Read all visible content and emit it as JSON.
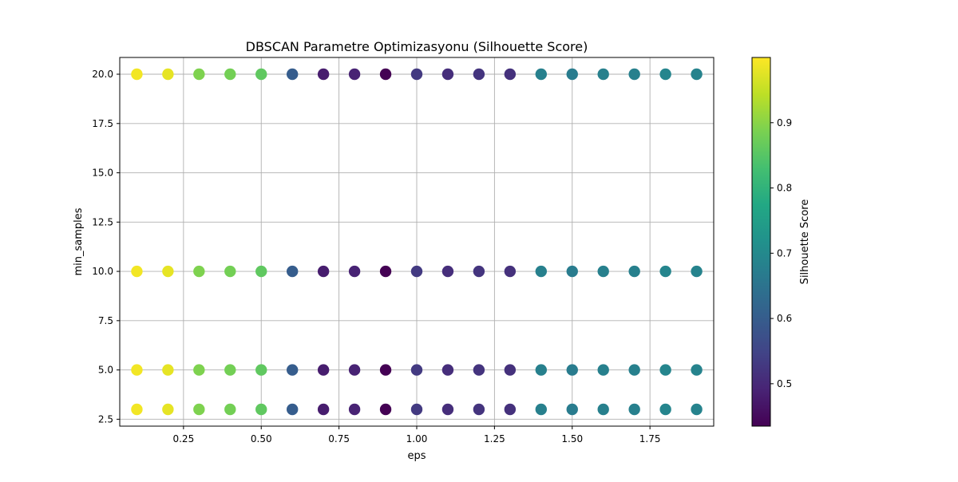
{
  "chart_data": {
    "type": "scatter",
    "title": "DBSCAN Parametre Optimizasyonu (Silhouette Score)",
    "xlabel": "eps",
    "ylabel": "min_samples",
    "xlim": [
      0.045,
      1.955
    ],
    "ylim": [
      2.15,
      20.85
    ],
    "x_ticks": [
      0.25,
      0.5,
      0.75,
      1.0,
      1.25,
      1.5,
      1.75
    ],
    "x_tick_labels": [
      "0.25",
      "0.50",
      "0.75",
      "1.00",
      "1.25",
      "1.50",
      "1.75"
    ],
    "y_ticks": [
      2.5,
      5.0,
      7.5,
      10.0,
      12.5,
      15.0,
      17.5,
      20.0
    ],
    "y_tick_labels": [
      "2.5",
      "5.0",
      "7.5",
      "10.0",
      "12.5",
      "15.0",
      "17.5",
      "20.0"
    ],
    "grid": true,
    "colormap": "viridis",
    "colorbar": {
      "label": "Silhouette Score",
      "range": [
        0.435,
        1.0
      ],
      "ticks": [
        0.5,
        0.6,
        0.7,
        0.8,
        0.9
      ],
      "tick_labels": [
        "0.5",
        "0.6",
        "0.7",
        "0.8",
        "0.9"
      ]
    },
    "eps_values": [
      0.1,
      0.2,
      0.3,
      0.4,
      0.5,
      0.6,
      0.7,
      0.8,
      0.9,
      1.0,
      1.1,
      1.2,
      1.3,
      1.4,
      1.5,
      1.6,
      1.7,
      1.8,
      1.9
    ],
    "min_samples_values": [
      3,
      5,
      10,
      20
    ],
    "silhouette_by_eps": [
      0.99,
      0.98,
      0.89,
      0.88,
      0.86,
      0.6,
      0.48,
      0.49,
      0.435,
      0.53,
      0.51,
      0.52,
      0.515,
      0.68,
      0.67,
      0.68,
      0.68,
      0.69,
      0.685
    ]
  },
  "colors": {
    "grid": "#b0b0b0",
    "axes": "#000000"
  }
}
